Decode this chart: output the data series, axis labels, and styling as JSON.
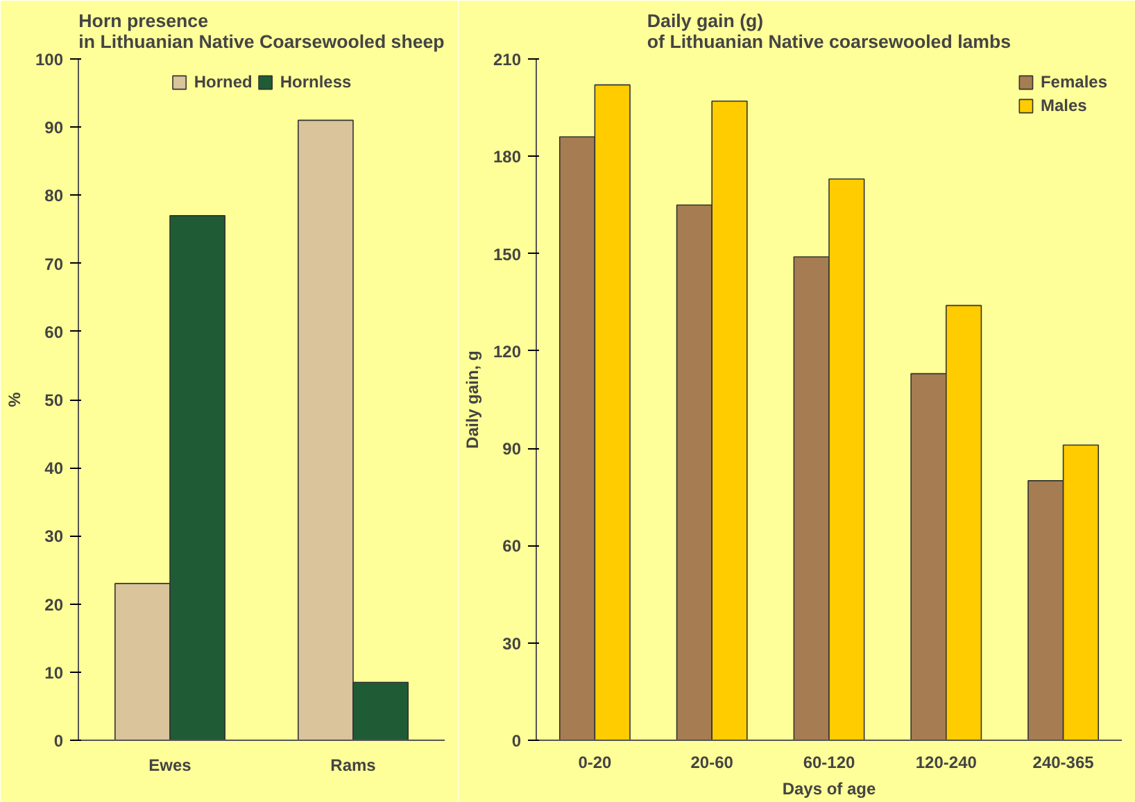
{
  "chart_data": [
    {
      "type": "bar",
      "title": "Horn presence\nin Lithuanian Native Coarsewooled sheep",
      "ylabel": "%",
      "categories": [
        "Ewes",
        "Rams"
      ],
      "series": [
        {
          "name": "Horned",
          "color": "#d9c49c",
          "values": [
            23,
            91
          ]
        },
        {
          "name": "Hornless",
          "color": "#1f5c36",
          "values": [
            77,
            8.5
          ]
        }
      ],
      "ylim": [
        0,
        100
      ],
      "yticks": [
        0,
        10,
        20,
        30,
        40,
        50,
        60,
        70,
        80,
        90,
        100
      ],
      "grid": false,
      "legend": "top"
    },
    {
      "type": "bar",
      "title": "Daily gain (g)\nof Lithuanian Native coarsewooled lambs",
      "xlabel": "Days of age",
      "ylabel": "Daily gain, g",
      "categories": [
        "0-20",
        "20-60",
        "60-120",
        "120-240",
        "240-365"
      ],
      "series": [
        {
          "name": "Females",
          "color": "#a67c52",
          "values": [
            186,
            165,
            149,
            113,
            80
          ]
        },
        {
          "name": "Males",
          "color": "#ffcc00",
          "values": [
            202,
            197,
            173,
            134,
            91
          ]
        }
      ],
      "ylim": [
        0,
        210
      ],
      "yticks": [
        0,
        30,
        60,
        90,
        120,
        150,
        180,
        210
      ],
      "grid": false,
      "legend": "top right"
    }
  ]
}
